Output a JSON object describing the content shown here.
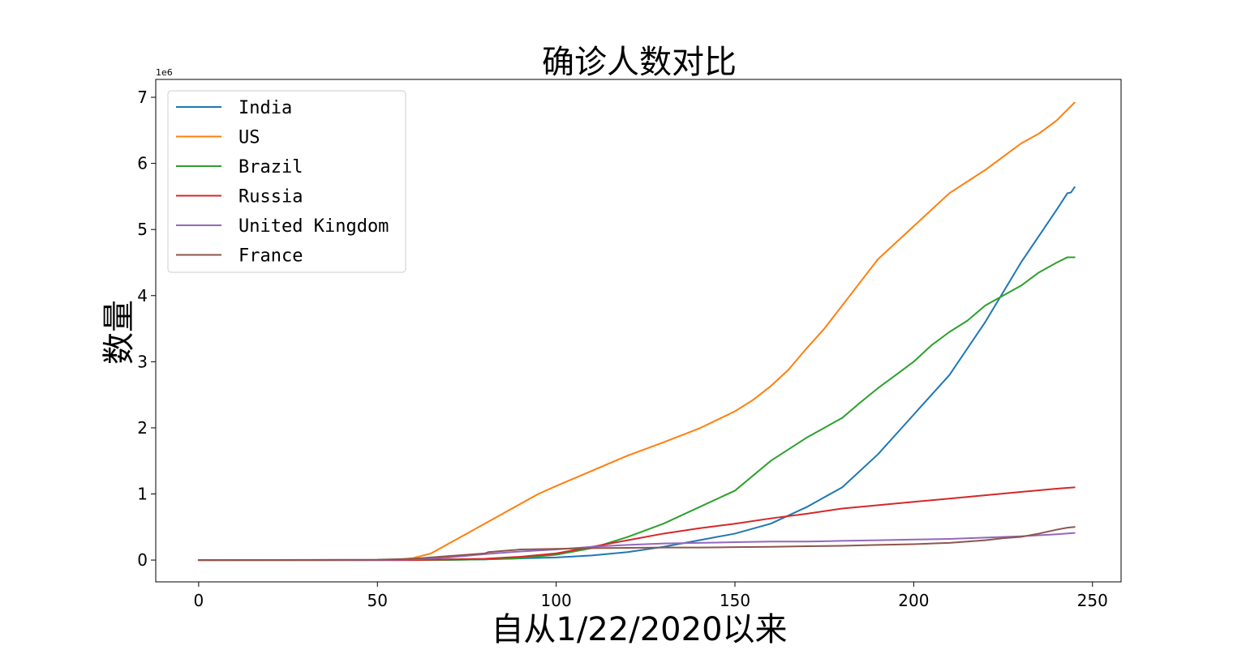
{
  "chart_data": {
    "type": "line",
    "title": "确诊人数对比",
    "xlabel": "自从1/22/2020以来",
    "ylabel": "数量",
    "y_offset_label": "1e6",
    "xlim": [
      -12,
      258
    ],
    "ylim": [
      -0.33,
      7.27
    ],
    "x_ticks": [
      0,
      50,
      100,
      150,
      200,
      250
    ],
    "y_ticks": [
      0,
      1,
      2,
      3,
      4,
      5,
      6,
      7
    ],
    "grid": false,
    "legend_position": "top-left",
    "series": [
      {
        "name": "India",
        "color": "#1f77b4",
        "points": [
          [
            0,
            0
          ],
          [
            50,
            0.0001
          ],
          [
            60,
            0.001
          ],
          [
            70,
            0.003
          ],
          [
            80,
            0.01
          ],
          [
            90,
            0.025
          ],
          [
            100,
            0.04
          ],
          [
            110,
            0.07
          ],
          [
            120,
            0.12
          ],
          [
            130,
            0.2
          ],
          [
            140,
            0.3
          ],
          [
            150,
            0.4
          ],
          [
            160,
            0.55
          ],
          [
            170,
            0.8
          ],
          [
            180,
            1.1
          ],
          [
            190,
            1.6
          ],
          [
            200,
            2.2
          ],
          [
            210,
            2.8
          ],
          [
            220,
            3.6
          ],
          [
            230,
            4.5
          ],
          [
            240,
            5.3
          ],
          [
            243,
            5.55
          ],
          [
            244,
            5.56
          ],
          [
            245,
            5.64
          ]
        ]
      },
      {
        "name": "US",
        "color": "#ff7f0e",
        "points": [
          [
            0,
            0
          ],
          [
            50,
            0.0002
          ],
          [
            55,
            0.003
          ],
          [
            60,
            0.03
          ],
          [
            65,
            0.1
          ],
          [
            70,
            0.25
          ],
          [
            75,
            0.4
          ],
          [
            80,
            0.55
          ],
          [
            85,
            0.7
          ],
          [
            90,
            0.85
          ],
          [
            95,
            1.0
          ],
          [
            100,
            1.12
          ],
          [
            110,
            1.35
          ],
          [
            120,
            1.58
          ],
          [
            130,
            1.78
          ],
          [
            140,
            1.99
          ],
          [
            150,
            2.25
          ],
          [
            155,
            2.42
          ],
          [
            160,
            2.63
          ],
          [
            165,
            2.88
          ],
          [
            170,
            3.2
          ],
          [
            175,
            3.5
          ],
          [
            180,
            3.85
          ],
          [
            185,
            4.2
          ],
          [
            190,
            4.55
          ],
          [
            195,
            4.8
          ],
          [
            200,
            5.05
          ],
          [
            205,
            5.3
          ],
          [
            210,
            5.55
          ],
          [
            220,
            5.9
          ],
          [
            225,
            6.1
          ],
          [
            230,
            6.3
          ],
          [
            235,
            6.45
          ],
          [
            240,
            6.65
          ],
          [
            245,
            6.92
          ]
        ]
      },
      {
        "name": "Brazil",
        "color": "#2ca02c",
        "points": [
          [
            0,
            0
          ],
          [
            60,
            0.0001
          ],
          [
            70,
            0.002
          ],
          [
            80,
            0.01
          ],
          [
            90,
            0.03
          ],
          [
            100,
            0.08
          ],
          [
            110,
            0.18
          ],
          [
            120,
            0.35
          ],
          [
            130,
            0.55
          ],
          [
            140,
            0.8
          ],
          [
            150,
            1.05
          ],
          [
            160,
            1.5
          ],
          [
            170,
            1.85
          ],
          [
            180,
            2.15
          ],
          [
            185,
            2.38
          ],
          [
            190,
            2.6
          ],
          [
            195,
            2.8
          ],
          [
            200,
            3.0
          ],
          [
            205,
            3.25
          ],
          [
            210,
            3.45
          ],
          [
            215,
            3.62
          ],
          [
            220,
            3.85
          ],
          [
            225,
            4.0
          ],
          [
            230,
            4.15
          ],
          [
            235,
            4.35
          ],
          [
            240,
            4.5
          ],
          [
            243,
            4.58
          ],
          [
            245,
            4.58
          ]
        ]
      },
      {
        "name": "Russia",
        "color": "#d62728",
        "points": [
          [
            0,
            0
          ],
          [
            60,
            0.0001
          ],
          [
            70,
            0.01
          ],
          [
            80,
            0.02
          ],
          [
            90,
            0.05
          ],
          [
            100,
            0.1
          ],
          [
            110,
            0.2
          ],
          [
            120,
            0.3
          ],
          [
            130,
            0.4
          ],
          [
            140,
            0.48
          ],
          [
            150,
            0.55
          ],
          [
            160,
            0.63
          ],
          [
            170,
            0.7
          ],
          [
            180,
            0.78
          ],
          [
            190,
            0.83
          ],
          [
            200,
            0.88
          ],
          [
            210,
            0.93
          ],
          [
            220,
            0.98
          ],
          [
            230,
            1.03
          ],
          [
            240,
            1.08
          ],
          [
            245,
            1.1
          ]
        ]
      },
      {
        "name": "United Kingdom",
        "color": "#9467bd",
        "points": [
          [
            0,
            0
          ],
          [
            50,
            0.001
          ],
          [
            60,
            0.01
          ],
          [
            70,
            0.04
          ],
          [
            80,
            0.09
          ],
          [
            90,
            0.13
          ],
          [
            100,
            0.16
          ],
          [
            110,
            0.2
          ],
          [
            120,
            0.23
          ],
          [
            130,
            0.25
          ],
          [
            140,
            0.26
          ],
          [
            150,
            0.27
          ],
          [
            160,
            0.28
          ],
          [
            170,
            0.28
          ],
          [
            180,
            0.29
          ],
          [
            190,
            0.3
          ],
          [
            200,
            0.31
          ],
          [
            210,
            0.32
          ],
          [
            220,
            0.34
          ],
          [
            230,
            0.36
          ],
          [
            240,
            0.39
          ],
          [
            245,
            0.41
          ]
        ]
      },
      {
        "name": "France",
        "color": "#8c564b",
        "points": [
          [
            0,
            0
          ],
          [
            50,
            0.005
          ],
          [
            60,
            0.02
          ],
          [
            70,
            0.06
          ],
          [
            80,
            0.1
          ],
          [
            81,
            0.12
          ],
          [
            90,
            0.16
          ],
          [
            100,
            0.17
          ],
          [
            110,
            0.18
          ],
          [
            120,
            0.185
          ],
          [
            130,
            0.19
          ],
          [
            140,
            0.19
          ],
          [
            150,
            0.195
          ],
          [
            160,
            0.2
          ],
          [
            170,
            0.21
          ],
          [
            180,
            0.215
          ],
          [
            190,
            0.23
          ],
          [
            200,
            0.24
          ],
          [
            205,
            0.25
          ],
          [
            210,
            0.26
          ],
          [
            215,
            0.28
          ],
          [
            220,
            0.3
          ],
          [
            225,
            0.33
          ],
          [
            230,
            0.35
          ],
          [
            235,
            0.4
          ],
          [
            240,
            0.46
          ],
          [
            243,
            0.49
          ],
          [
            245,
            0.5
          ]
        ]
      }
    ]
  }
}
